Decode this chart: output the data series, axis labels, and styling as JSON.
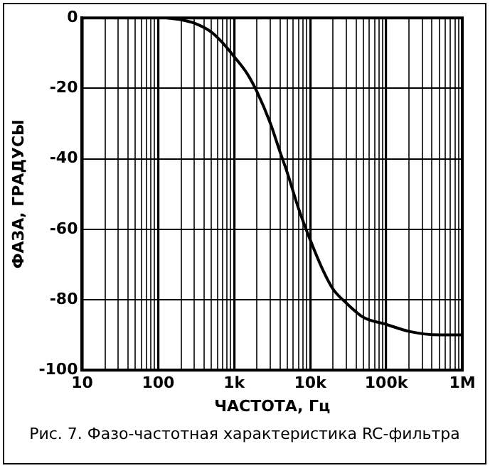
{
  "chart_data": {
    "type": "line",
    "xlabel": "ЧАСТОТА, Гц",
    "ylabel": "ФАЗА, ГРАДУСЫ",
    "annotations": [
      "Рис. 7. Фазо-частотная характеристика RC-фильтра"
    ],
    "x": [
      130,
      200,
      300,
      500,
      700,
      1000,
      1500,
      2000,
      3000,
      4000,
      5000,
      7000,
      10000,
      15000,
      20000,
      30000,
      50000,
      100000,
      200000,
      500000,
      1000000
    ],
    "series": [
      {
        "color": "#000000",
        "values": [
          0,
          -0.5,
          -1.5,
          -4,
          -7,
          -11,
          -16,
          -21,
          -30,
          -38,
          -44,
          -54,
          -63,
          -72,
          -77,
          -81,
          -85,
          -87,
          -89,
          -90,
          -90
        ]
      }
    ],
    "log": "x",
    "xlim": [
      10,
      1000000
    ],
    "ylim": [
      -100,
      0
    ],
    "xticks": [
      10,
      {
        "value": 20,
        "label": null
      },
      {
        "value": 30,
        "label": null
      },
      {
        "value": 40,
        "label": null
      },
      {
        "value": 50,
        "label": null
      },
      {
        "value": 60,
        "label": null
      },
      {
        "value": 70,
        "label": null
      },
      {
        "value": 80,
        "label": null
      },
      {
        "value": 90,
        "label": null
      },
      100,
      {
        "value": 200,
        "label": null
      },
      {
        "value": 300,
        "label": null
      },
      {
        "value": 400,
        "label": null
      },
      {
        "value": 500,
        "label": null
      },
      {
        "value": 600,
        "label": null
      },
      {
        "value": 700,
        "label": null
      },
      {
        "value": 800,
        "label": null
      },
      {
        "value": 900,
        "label": null
      },
      {
        "value": 1000,
        "label": "1k"
      },
      {
        "value": 2000,
        "label": null
      },
      {
        "value": 3000,
        "label": null
      },
      {
        "value": 4000,
        "label": null
      },
      {
        "value": 5000,
        "label": null
      },
      {
        "value": 6000,
        "label": null
      },
      {
        "value": 7000,
        "label": null
      },
      {
        "value": 8000,
        "label": null
      },
      {
        "value": 9000,
        "label": null
      },
      {
        "value": 10000,
        "label": "10k"
      },
      {
        "value": 20000,
        "label": null
      },
      {
        "value": 30000,
        "label": null
      },
      {
        "value": 40000,
        "label": null
      },
      {
        "value": 50000,
        "label": null
      },
      {
        "value": 60000,
        "label": null
      },
      {
        "value": 70000,
        "label": null
      },
      {
        "value": 80000,
        "label": null
      },
      {
        "value": 90000,
        "label": null
      },
      {
        "value": 100000,
        "label": "100k"
      },
      {
        "value": 200000,
        "label": null
      },
      {
        "value": 300000,
        "label": null
      },
      {
        "value": 400000,
        "label": null
      },
      {
        "value": 500000,
        "label": null
      },
      {
        "value": 600000,
        "label": null
      },
      {
        "value": 700000,
        "label": null
      },
      {
        "value": 800000,
        "label": null
      },
      {
        "value": 900000,
        "label": null
      },
      {
        "value": 1000000,
        "label": "1M"
      }
    ],
    "yticks": [
      -100,
      -80,
      -60,
      -40,
      -20,
      0
    ],
    "grid": true,
    "legend": false,
    "marker": "none",
    "line_style": "solid"
  }
}
